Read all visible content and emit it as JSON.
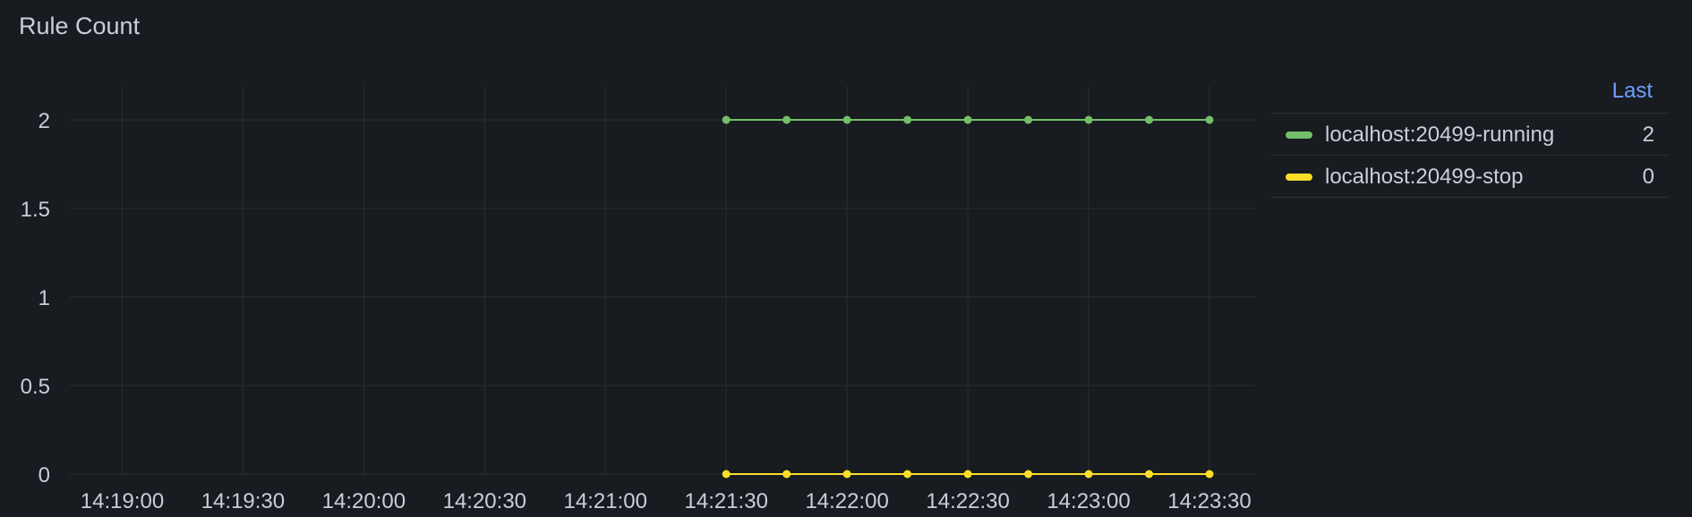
{
  "panel": {
    "title": "Rule Count"
  },
  "legend": {
    "column_header": "Last",
    "items": [
      {
        "name": "localhost:20499-running",
        "value": "2",
        "color": "#73bf69"
      },
      {
        "name": "localhost:20499-stop",
        "value": "0",
        "color": "#fade2a"
      }
    ]
  },
  "chart_data": {
    "type": "line",
    "title": "Rule Count",
    "xlabel": "",
    "ylabel": "",
    "x_ticks": [
      "14:19:00",
      "14:19:30",
      "14:20:00",
      "14:20:30",
      "14:21:00",
      "14:21:30",
      "14:22:00",
      "14:22:30",
      "14:23:00",
      "14:23:30"
    ],
    "y_ticks": [
      "0",
      "0.5",
      "1",
      "1.5",
      "2"
    ],
    "ylim": [
      0,
      2
    ],
    "xlim": [
      "14:18:47",
      "14:23:30"
    ],
    "grid": true,
    "legend_position": "right",
    "x": [
      "14:21:30",
      "14:21:45",
      "14:22:00",
      "14:22:15",
      "14:22:30",
      "14:22:45",
      "14:23:00",
      "14:23:15",
      "14:23:30"
    ],
    "series": [
      {
        "name": "localhost:20499-running",
        "color": "#73bf69",
        "values": [
          2,
          2,
          2,
          2,
          2,
          2,
          2,
          2,
          2
        ]
      },
      {
        "name": "localhost:20499-stop",
        "color": "#fade2a",
        "values": [
          0,
          0,
          0,
          0,
          0,
          0,
          0,
          0,
          0
        ]
      }
    ]
  }
}
